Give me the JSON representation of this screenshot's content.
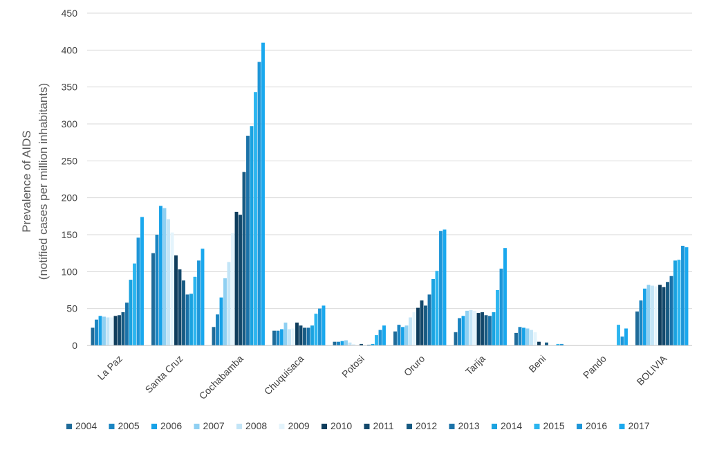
{
  "chart_data": {
    "type": "bar",
    "ylabel_line1": "Prevalence of AIDS",
    "ylabel_line2": "(notified cases per million inhabitants)",
    "xlabel": "",
    "ylim": [
      0,
      450
    ],
    "yticks": [
      "0",
      "50",
      "100",
      "150",
      "200",
      "250",
      "300",
      "350",
      "400",
      "450"
    ],
    "grid": true,
    "legend_position": "bottom",
    "categories": [
      "La Paz",
      "Santa Cruz",
      "Cochabamba",
      "Chuquisaca",
      "Potosi",
      "Oruro",
      "Tarija",
      "Beni",
      "Pando",
      "BOLIVIA"
    ],
    "series": [
      {
        "name": "2004",
        "color": "#1f6b99",
        "values": [
          24,
          125,
          25,
          20,
          5,
          19,
          18,
          17,
          0,
          46
        ]
      },
      {
        "name": "2005",
        "color": "#1a85c2",
        "values": [
          35,
          150,
          42,
          20,
          5,
          28,
          37,
          25,
          0,
          61
        ]
      },
      {
        "name": "2006",
        "color": "#17a2e8",
        "values": [
          40,
          189,
          65,
          22,
          6,
          25,
          40,
          24,
          0,
          77
        ]
      },
      {
        "name": "2007",
        "color": "#8fd0f2",
        "values": [
          39,
          186,
          91,
          31,
          7,
          27,
          47,
          23,
          0,
          82
        ]
      },
      {
        "name": "2008",
        "color": "#c3e5f7",
        "values": [
          38,
          171,
          113,
          22,
          4,
          38,
          48,
          21,
          0,
          81
        ]
      },
      {
        "name": "2009",
        "color": "#e4f4fc",
        "values": [
          38,
          153,
          152,
          23,
          2,
          45,
          47,
          18,
          0,
          80
        ]
      },
      {
        "name": "2010",
        "color": "#0f3d5c",
        "values": [
          40,
          122,
          181,
          31,
          0,
          51,
          44,
          5,
          0,
          82
        ]
      },
      {
        "name": "2011",
        "color": "#13486b",
        "values": [
          41,
          103,
          177,
          27,
          2,
          61,
          45,
          0,
          0,
          79
        ]
      },
      {
        "name": "2012",
        "color": "#175a82",
        "values": [
          45,
          88,
          235,
          24,
          0,
          54,
          41,
          4,
          0,
          86
        ]
      },
      {
        "name": "2013",
        "color": "#1b72a8",
        "values": [
          58,
          69,
          284,
          24,
          1,
          69,
          40,
          0,
          0,
          94
        ]
      },
      {
        "name": "2014",
        "color": "#1ba3e0",
        "values": [
          89,
          70,
          297,
          27,
          2,
          90,
          45,
          0,
          0,
          115
        ]
      },
      {
        "name": "2015",
        "color": "#2bb5ef",
        "values": [
          111,
          93,
          343,
          43,
          14,
          101,
          75,
          2,
          28,
          116
        ]
      },
      {
        "name": "2016",
        "color": "#1e96d8",
        "values": [
          146,
          115,
          384,
          50,
          21,
          155,
          104,
          2,
          12,
          135
        ]
      },
      {
        "name": "2017",
        "color": "#1aa8ee",
        "values": [
          174,
          131,
          410,
          54,
          27,
          157,
          132,
          0,
          23,
          133
        ]
      }
    ]
  }
}
